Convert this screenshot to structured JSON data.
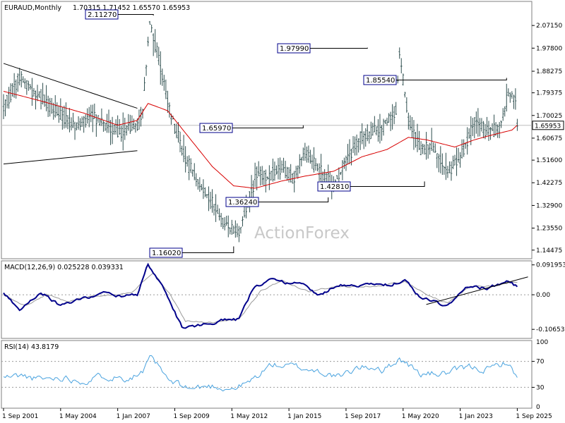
{
  "watermark": "ActionForex",
  "colors": {
    "price": "#2f4f4f",
    "ma": "#d80000",
    "macd": "#00008b",
    "signal": "#9a9a9a",
    "rsi": "#4aa3df",
    "grid": "#9c9c9c",
    "trend": "#000000",
    "current_bg": "#ffffff"
  },
  "chart_data": [
    {
      "type": "line",
      "title": "EURAUD,Monthly",
      "ohlc_text": "1.70315 1.71452 1.65570 1.65953",
      "ylim": [
        1.115,
        2.165
      ],
      "y_ticks": [
        "2.07150",
        "1.97800",
        "1.88275",
        "1.79375",
        "1.70025",
        "1.60675",
        "1.51600",
        "1.42275",
        "1.32900",
        "1.23550",
        "1.14475"
      ],
      "current_price": "1.65953",
      "annotations": [
        {
          "label": "2.11270",
          "value": 2.1127
        },
        {
          "label": "1.97990",
          "value": 1.9799
        },
        {
          "label": "1.85540",
          "value": 1.8554
        },
        {
          "label": "1.65970",
          "value": 1.6597
        },
        {
          "label": "1.36240",
          "value": 1.3624
        },
        {
          "label": "1.42810",
          "value": 1.4281
        },
        {
          "label": "1.16020",
          "value": 1.1602
        }
      ],
      "x_labels": [
        "1 Sep 2001",
        "1 May 2004",
        "1 Jan 2007",
        "1 Sep 2009",
        "1 May 2012",
        "1 Jan 2015",
        "1 Sep 2017",
        "1 May 2020",
        "1 Jan 2023",
        "1 Sep 2025"
      ],
      "series": [
        {
          "name": "price",
          "x": [
            "2001-09",
            "2002-06",
            "2003-03",
            "2004-05",
            "2005-02",
            "2005-10",
            "2006-07",
            "2007-03",
            "2007-12",
            "2008-03",
            "2008-07",
            "2009-01",
            "2009-07",
            "2010-03",
            "2011-01",
            "2011-06",
            "2012-01",
            "2012-09",
            "2013-07",
            "2014-02",
            "2014-09",
            "2015-04",
            "2015-10",
            "2016-05",
            "2017-02",
            "2018-01",
            "2018-06",
            "2019-04",
            "2020-01",
            "2020-03",
            "2020-08",
            "2021-03",
            "2021-09",
            "2022-06",
            "2023-01",
            "2023-09",
            "2024-03",
            "2024-11",
            "2025-04",
            "2025-08",
            "2025-09"
          ],
          "values": [
            1.73,
            1.86,
            1.79,
            1.7,
            1.66,
            1.7,
            1.66,
            1.63,
            1.66,
            1.72,
            2.09,
            1.9,
            1.7,
            1.52,
            1.39,
            1.34,
            1.25,
            1.22,
            1.46,
            1.45,
            1.48,
            1.44,
            1.55,
            1.48,
            1.42,
            1.56,
            1.62,
            1.64,
            1.72,
            1.96,
            1.68,
            1.56,
            1.57,
            1.47,
            1.52,
            1.68,
            1.64,
            1.64,
            1.79,
            1.77,
            1.66
          ]
        },
        {
          "name": "ma",
          "x": [
            "2001-09",
            "2003-06",
            "2005-06",
            "2007-01",
            "2007-12",
            "2008-06",
            "2009-05",
            "2010-06",
            "2011-06",
            "2012-06",
            "2013-06",
            "2014-09",
            "2015-10",
            "2017-02",
            "2018-06",
            "2019-08",
            "2020-08",
            "2021-06",
            "2022-10",
            "2023-09",
            "2024-07",
            "2025-06",
            "2025-09"
          ],
          "values": [
            1.8,
            1.76,
            1.71,
            1.66,
            1.68,
            1.75,
            1.72,
            1.6,
            1.49,
            1.41,
            1.4,
            1.43,
            1.45,
            1.47,
            1.53,
            1.56,
            1.61,
            1.6,
            1.57,
            1.6,
            1.62,
            1.64,
            1.66
          ]
        },
        {
          "name": "trendline_upper",
          "x": [
            "2001-09",
            "2007-12"
          ],
          "values": [
            1.915,
            1.73
          ]
        },
        {
          "name": "trendline_lower",
          "x": [
            "2001-09",
            "2007-12"
          ],
          "values": [
            1.5,
            1.555
          ]
        }
      ]
    },
    {
      "type": "line",
      "title": "MACD(12,26,9) 0.025228 0.039331",
      "ylim": [
        -0.13,
        0.1
      ],
      "y_ticks": [
        "0.091953",
        "0.00",
        "-0.106531"
      ],
      "series": [
        {
          "name": "macd",
          "x": [
            "2001-09",
            "2002-06",
            "2003-06",
            "2004-05",
            "2005-06",
            "2006-06",
            "2007-03",
            "2007-12",
            "2008-06",
            "2009-03",
            "2010-01",
            "2010-10",
            "2011-10",
            "2012-09",
            "2013-05",
            "2014-02",
            "2014-08",
            "2015-06",
            "2016-06",
            "2017-04",
            "2018-03",
            "2019-03",
            "2019-09",
            "2020-06",
            "2021-02",
            "2022-06",
            "2023-05",
            "2024-04",
            "2025-02",
            "2025-05",
            "2025-09"
          ],
          "values": [
            0.005,
            -0.045,
            0.01,
            -0.035,
            -0.01,
            0.005,
            -0.005,
            0.0,
            0.095,
            0.015,
            -0.1,
            -0.095,
            -0.08,
            -0.075,
            0.02,
            0.05,
            0.035,
            0.04,
            0.0,
            0.03,
            0.03,
            0.03,
            0.03,
            0.045,
            -0.005,
            -0.035,
            0.025,
            0.02,
            0.04,
            0.04,
            0.025
          ]
        },
        {
          "name": "signal",
          "x": [
            "2001-09",
            "2002-09",
            "2003-09",
            "2004-09",
            "2005-09",
            "2006-09",
            "2007-09",
            "2008-09",
            "2009-06",
            "2010-03",
            "2011-06",
            "2012-09",
            "2013-09",
            "2014-09",
            "2015-12",
            "2017-04",
            "2018-03",
            "2019-06",
            "2020-06",
            "2021-06",
            "2022-06",
            "2023-06",
            "2024-06",
            "2025-04",
            "2025-09"
          ],
          "values": [
            0.0,
            -0.035,
            0.0,
            -0.02,
            -0.005,
            0.0,
            0.005,
            0.07,
            0.005,
            -0.08,
            -0.085,
            -0.075,
            0.01,
            0.045,
            0.01,
            0.025,
            0.025,
            0.03,
            0.04,
            0.0,
            -0.025,
            0.025,
            0.025,
            0.035,
            0.04
          ]
        },
        {
          "name": "trendline",
          "x": [
            "2021-06",
            "2026-03"
          ],
          "values": [
            -0.03,
            0.055
          ]
        }
      ]
    },
    {
      "type": "line",
      "title": "RSI(14) 43.8179",
      "ylim": [
        0,
        100
      ],
      "y_ticks": [
        "100",
        "70",
        "30",
        "0"
      ],
      "series": [
        {
          "name": "rsi",
          "x": [
            "2001-09",
            "2002-06",
            "2003-06",
            "2004-06",
            "2005-06",
            "2006-06",
            "2007-06",
            "2008-03",
            "2008-08",
            "2009-06",
            "2010-06",
            "2011-06",
            "2012-06",
            "2013-03",
            "2014-03",
            "2015-03",
            "2016-06",
            "2017-06",
            "2018-03",
            "2019-03",
            "2019-06",
            "2020-03",
            "2021-03",
            "2022-06",
            "2023-06",
            "2024-06",
            "2025-03",
            "2025-09"
          ],
          "values": [
            45,
            48,
            42,
            46,
            40,
            48,
            45,
            52,
            76,
            38,
            28,
            32,
            28,
            38,
            65,
            62,
            55,
            45,
            60,
            62,
            55,
            75,
            50,
            52,
            60,
            58,
            70,
            44
          ]
        }
      ]
    }
  ]
}
